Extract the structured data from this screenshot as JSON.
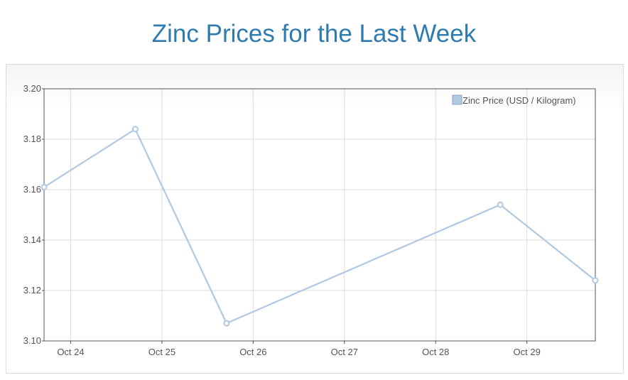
{
  "page": {
    "title": "Zinc Prices for the Last Week"
  },
  "colors": {
    "title": "#2e7bb0",
    "series": "#b0c8e0",
    "grid": "#dcdcdc",
    "axis": "#545454"
  },
  "chart_data": {
    "type": "line",
    "title": "Zinc Prices for the Last Week",
    "xlabel": "",
    "ylabel": "",
    "x_ticks": [
      "Oct 24",
      "Oct 25",
      "Oct 26",
      "Oct 27",
      "Oct 28",
      "Oct 29"
    ],
    "y_ticks": [
      "3.10",
      "3.12",
      "3.14",
      "3.16",
      "3.18",
      "3.20"
    ],
    "ylim": [
      3.1,
      3.2
    ],
    "x_range_days": [
      "Oct 23 17:00",
      "Oct 29 18:00"
    ],
    "grid": true,
    "legend_position": "top-right",
    "series": [
      {
        "name": "Zinc Price (USD / Kilogram)",
        "points": [
          {
            "x": "Oct 23 17:00",
            "y": 3.161
          },
          {
            "x": "Oct 24 17:00",
            "y": 3.184
          },
          {
            "x": "Oct 25 17:00",
            "y": 3.107
          },
          {
            "x": "Oct 28 17:00",
            "y": 3.154
          },
          {
            "x": "Oct 29 18:00",
            "y": 3.124
          }
        ]
      }
    ]
  }
}
